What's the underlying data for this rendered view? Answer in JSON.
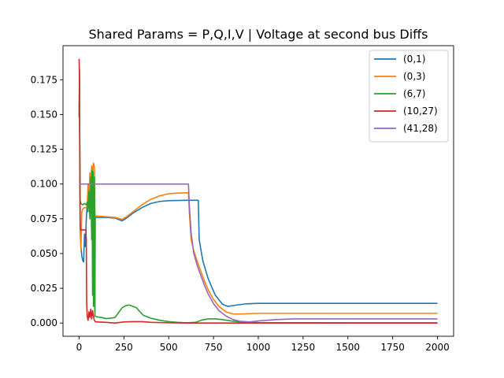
{
  "chart_data": {
    "type": "line",
    "title": "Shared Params =  P,Q,I,V | Voltage at second bus Diffs",
    "xlabel": "",
    "ylabel": "",
    "xlim": [
      -90,
      2090
    ],
    "ylim": [
      -0.0095,
      0.1995
    ],
    "xticks": [
      0,
      250,
      500,
      750,
      1000,
      1250,
      1500,
      1750,
      2000
    ],
    "yticks": [
      0.0,
      0.025,
      0.05,
      0.075,
      0.1,
      0.125,
      0.15,
      0.175
    ],
    "ytick_labels": [
      "0.000",
      "0.025",
      "0.050",
      "0.075",
      "0.100",
      "0.125",
      "0.150",
      "0.175"
    ],
    "grid": false,
    "legend_position": "top-right",
    "series": [
      {
        "name": "(0,1)",
        "color": "#1f77b4",
        "points": [
          [
            0,
            0.148
          ],
          [
            2,
            0.183
          ],
          [
            4,
            0.11
          ],
          [
            6,
            0.07
          ],
          [
            10,
            0.055
          ],
          [
            15,
            0.048
          ],
          [
            20,
            0.045
          ],
          [
            25,
            0.044
          ],
          [
            30,
            0.064
          ],
          [
            35,
            0.055
          ],
          [
            40,
            0.075
          ],
          [
            45,
            0.085
          ],
          [
            50,
            0.09
          ],
          [
            55,
            0.088
          ],
          [
            60,
            0.09
          ],
          [
            65,
            0.088
          ],
          [
            70,
            0.09
          ],
          [
            75,
            0.092
          ],
          [
            80,
            0.089
          ],
          [
            85,
            0.06
          ],
          [
            88,
            0.008
          ],
          [
            90,
            0.076
          ],
          [
            100,
            0.076
          ],
          [
            150,
            0.076
          ],
          [
            200,
            0.0755
          ],
          [
            240,
            0.0735
          ],
          [
            270,
            0.076
          ],
          [
            300,
            0.079
          ],
          [
            350,
            0.083
          ],
          [
            400,
            0.086
          ],
          [
            450,
            0.0875
          ],
          [
            500,
            0.088
          ],
          [
            600,
            0.0883
          ],
          [
            665,
            0.0883
          ],
          [
            670,
            0.06
          ],
          [
            690,
            0.045
          ],
          [
            720,
            0.032
          ],
          [
            760,
            0.02
          ],
          [
            800,
            0.0135
          ],
          [
            830,
            0.012
          ],
          [
            870,
            0.0128
          ],
          [
            930,
            0.0138
          ],
          [
            1000,
            0.0142
          ],
          [
            1200,
            0.0142
          ],
          [
            1500,
            0.0142
          ],
          [
            2000,
            0.0142
          ]
        ]
      },
      {
        "name": "(0,3)",
        "color": "#ff7f0e",
        "points": [
          [
            0,
            0.148
          ],
          [
            2,
            0.18
          ],
          [
            4,
            0.1
          ],
          [
            6,
            0.065
          ],
          [
            10,
            0.053
          ],
          [
            15,
            0.08
          ],
          [
            20,
            0.082
          ],
          [
            30,
            0.083
          ],
          [
            40,
            0.083
          ],
          [
            45,
            0.085
          ],
          [
            50,
            0.1
          ],
          [
            55,
            0.09
          ],
          [
            60,
            0.108
          ],
          [
            65,
            0.1
          ],
          [
            70,
            0.113
          ],
          [
            75,
            0.108
          ],
          [
            80,
            0.115
          ],
          [
            85,
            0.113
          ],
          [
            88,
            0.08
          ],
          [
            90,
            0.077
          ],
          [
            100,
            0.077
          ],
          [
            150,
            0.0765
          ],
          [
            200,
            0.076
          ],
          [
            240,
            0.0745
          ],
          [
            270,
            0.077
          ],
          [
            300,
            0.08
          ],
          [
            350,
            0.085
          ],
          [
            400,
            0.089
          ],
          [
            450,
            0.0915
          ],
          [
            500,
            0.093
          ],
          [
            550,
            0.0935
          ],
          [
            610,
            0.0937
          ],
          [
            615,
            0.08
          ],
          [
            625,
            0.06
          ],
          [
            640,
            0.052
          ],
          [
            660,
            0.044
          ],
          [
            680,
            0.037
          ],
          [
            700,
            0.03
          ],
          [
            720,
            0.024
          ],
          [
            750,
            0.017
          ],
          [
            780,
            0.012
          ],
          [
            820,
            0.008
          ],
          [
            860,
            0.0065
          ],
          [
            900,
            0.0065
          ],
          [
            1000,
            0.007
          ],
          [
            1500,
            0.007
          ],
          [
            2000,
            0.007
          ]
        ]
      },
      {
        "name": "(6,7)",
        "color": "#2ca02c",
        "points": [
          [
            0,
            0.148
          ],
          [
            2,
            0.175
          ],
          [
            4,
            0.1
          ],
          [
            6,
            0.088
          ],
          [
            10,
            0.086
          ],
          [
            20,
            0.085
          ],
          [
            30,
            0.086
          ],
          [
            40,
            0.085
          ],
          [
            45,
            0.087
          ],
          [
            50,
            0.08
          ],
          [
            55,
            0.095
          ],
          [
            60,
            0.075
          ],
          [
            65,
            0.105
          ],
          [
            70,
            0.06
          ],
          [
            72,
            0.11
          ],
          [
            75,
            0.02
          ],
          [
            78,
            0.109
          ],
          [
            80,
            0.012
          ],
          [
            82,
            0.1
          ],
          [
            84,
            0.015
          ],
          [
            86,
            0.105
          ],
          [
            88,
            0.005
          ],
          [
            100,
            0.0045
          ],
          [
            125,
            0.004
          ],
          [
            150,
            0.0032
          ],
          [
            175,
            0.0035
          ],
          [
            200,
            0.004
          ],
          [
            220,
            0.0075
          ],
          [
            240,
            0.011
          ],
          [
            260,
            0.0125
          ],
          [
            280,
            0.013
          ],
          [
            300,
            0.012
          ],
          [
            320,
            0.011
          ],
          [
            340,
            0.008
          ],
          [
            360,
            0.0055
          ],
          [
            400,
            0.0035
          ],
          [
            450,
            0.002
          ],
          [
            500,
            0.001
          ],
          [
            550,
            0.0005
          ],
          [
            600,
            0.0002
          ],
          [
            650,
            0.0005
          ],
          [
            680,
            0.002
          ],
          [
            720,
            0.003
          ],
          [
            760,
            0.003
          ],
          [
            800,
            0.0025
          ],
          [
            850,
            0.0015
          ],
          [
            900,
            0.0008
          ],
          [
            1000,
            0.0003
          ],
          [
            1500,
            0.0002
          ],
          [
            2000,
            0.0002
          ]
        ]
      },
      {
        "name": "(10,27)",
        "color": "#d62728",
        "points": [
          [
            0,
            0.19
          ],
          [
            2,
            0.175
          ],
          [
            4,
            0.12
          ],
          [
            6,
            0.068
          ],
          [
            10,
            0.067
          ],
          [
            20,
            0.067
          ],
          [
            30,
            0.067
          ],
          [
            38,
            0.067
          ],
          [
            40,
            0.06
          ],
          [
            42,
            0.015
          ],
          [
            45,
            0.005
          ],
          [
            50,
            0.002
          ],
          [
            55,
            0.008
          ],
          [
            60,
            0.004
          ],
          [
            65,
            0.01
          ],
          [
            70,
            0.003
          ],
          [
            75,
            0.009
          ],
          [
            80,
            0.005
          ],
          [
            85,
            0.002
          ],
          [
            90,
            0.001
          ],
          [
            100,
            0.0008
          ],
          [
            150,
            0.0005
          ],
          [
            200,
            0.0
          ],
          [
            250,
            0.0008
          ],
          [
            300,
            0.001
          ],
          [
            350,
            0.001
          ],
          [
            400,
            0.0005
          ],
          [
            500,
            0.0002
          ],
          [
            600,
            0.0
          ],
          [
            1000,
            0.0
          ],
          [
            2000,
            0.0
          ]
        ]
      },
      {
        "name": "(41,28)",
        "color": "#9467bd",
        "points": [
          [
            0,
            0.1
          ],
          [
            100,
            0.1
          ],
          [
            200,
            0.1
          ],
          [
            300,
            0.1
          ],
          [
            400,
            0.1
          ],
          [
            500,
            0.1
          ],
          [
            600,
            0.1
          ],
          [
            610,
            0.1
          ],
          [
            615,
            0.085
          ],
          [
            625,
            0.065
          ],
          [
            640,
            0.05
          ],
          [
            660,
            0.041
          ],
          [
            680,
            0.034
          ],
          [
            700,
            0.027
          ],
          [
            720,
            0.021
          ],
          [
            750,
            0.014
          ],
          [
            780,
            0.009
          ],
          [
            820,
            0.005
          ],
          [
            860,
            0.0025
          ],
          [
            900,
            0.0012
          ],
          [
            950,
            0.0008
          ],
          [
            1000,
            0.0015
          ],
          [
            1100,
            0.0025
          ],
          [
            1200,
            0.003
          ],
          [
            1500,
            0.003
          ],
          [
            2000,
            0.003
          ]
        ]
      }
    ]
  }
}
